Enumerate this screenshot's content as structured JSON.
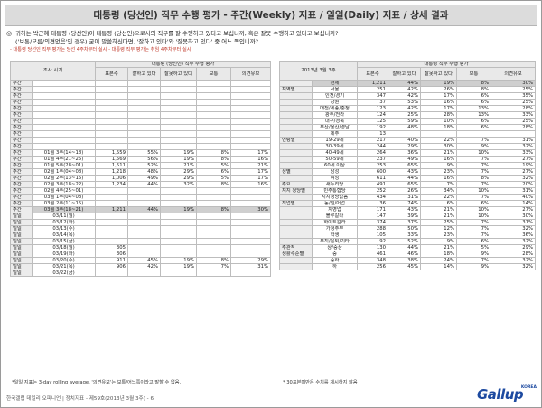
{
  "title": "대통령 (당선인) 직무 수행 평가 - 주간(Weekly) 지표 / 일일(Daily) 지표 / 상세 결과",
  "question": {
    "bullet": "◎",
    "line1": "귀하는 박근혜 대통령 (당선인)이 대통령 (당선인)으로서의 직무를 잘 수행하고 있다고 보십니까, 혹은 잘못 수행하고 있다고 보십니까?",
    "line2": "('보통/모름/의견없음'인 경우) 굳이 말씀하신다면, '잘하고 있다'와 '잘못하고 있다' 중 어느 쪽입니까?"
  },
  "notes": {
    "line1": "- 대통령 당선인 직무 평가는 당선 4주차부터 실시",
    "line2": "- 대통령 직무 평가는 취임 4주차부터 실시"
  },
  "left_table": {
    "header_period": "조사 시기",
    "header_group": "대통령 (당선인) 직무 수행 평가",
    "header_n": "표본수",
    "header_good": "잘하고 있다",
    "header_bad": "잘못하고 있다",
    "header_neutral": "보통",
    "header_nr": "의견유보",
    "weekly_rows": [
      {
        "kind": "주간",
        "period": "",
        "n": "",
        "good": "",
        "bad": "",
        "neutral": "",
        "nr": ""
      },
      {
        "kind": "주간",
        "period": "",
        "n": "",
        "good": "",
        "bad": "",
        "neutral": "",
        "nr": ""
      },
      {
        "kind": "주간",
        "period": "",
        "n": "",
        "good": "",
        "bad": "",
        "neutral": "",
        "nr": ""
      },
      {
        "kind": "주간",
        "period": "",
        "n": "",
        "good": "",
        "bad": "",
        "neutral": "",
        "nr": ""
      },
      {
        "kind": "주간",
        "period": "",
        "n": "",
        "good": "",
        "bad": "",
        "neutral": "",
        "nr": ""
      },
      {
        "kind": "주간",
        "period": "",
        "n": "",
        "good": "",
        "bad": "",
        "neutral": "",
        "nr": ""
      },
      {
        "kind": "주간",
        "period": "",
        "n": "",
        "good": "",
        "bad": "",
        "neutral": "",
        "nr": ""
      },
      {
        "kind": "주간",
        "period": "",
        "n": "",
        "good": "",
        "bad": "",
        "neutral": "",
        "nr": ""
      },
      {
        "kind": "주간",
        "period": "",
        "n": "",
        "good": "",
        "bad": "",
        "neutral": "",
        "nr": ""
      },
      {
        "kind": "주간",
        "period": "",
        "n": "",
        "good": "",
        "bad": "",
        "neutral": "",
        "nr": ""
      },
      {
        "kind": "주간",
        "period": "",
        "n": "",
        "good": "",
        "bad": "",
        "neutral": "",
        "nr": ""
      },
      {
        "kind": "주간",
        "period": "01월 3주(14~18)",
        "n": "1,559",
        "good": "55%",
        "bad": "19%",
        "neutral": "8%",
        "nr": "17%"
      },
      {
        "kind": "주간",
        "period": "01월 4주(21~25)",
        "n": "1,569",
        "good": "56%",
        "bad": "19%",
        "neutral": "8%",
        "nr": "16%"
      },
      {
        "kind": "주간",
        "period": "01월 5주(28~01)",
        "n": "1,511",
        "good": "52%",
        "bad": "21%",
        "neutral": "5%",
        "nr": "21%"
      },
      {
        "kind": "주간",
        "period": "02월 1주(04~08)",
        "n": "1,218",
        "good": "48%",
        "bad": "29%",
        "neutral": "6%",
        "nr": "17%"
      },
      {
        "kind": "주간",
        "period": "02월 2주(13~15)",
        "n": "1,006",
        "good": "49%",
        "bad": "29%",
        "neutral": "5%",
        "nr": "17%"
      },
      {
        "kind": "주간",
        "period": "02월 3주(18~22)",
        "n": "1,234",
        "good": "44%",
        "bad": "32%",
        "neutral": "8%",
        "nr": "16%"
      },
      {
        "kind": "주간",
        "period": "02월 4주(25~01)",
        "n": "",
        "good": "",
        "bad": "",
        "neutral": "",
        "nr": ""
      },
      {
        "kind": "주간",
        "period": "03월 1주(04~08)",
        "n": "",
        "good": "",
        "bad": "",
        "neutral": "",
        "nr": ""
      },
      {
        "kind": "주간",
        "period": "03월 2주(11~15)",
        "n": "",
        "good": "",
        "bad": "",
        "neutral": "",
        "nr": ""
      },
      {
        "kind": "주간",
        "period": "03월 3주(18~21)",
        "n": "1,211",
        "good": "44%",
        "bad": "19%",
        "neutral": "8%",
        "nr": "30%"
      }
    ],
    "daily_rows": [
      {
        "kind": "일일",
        "period": "03/11(월)",
        "n": "",
        "good": "",
        "bad": "",
        "neutral": "",
        "nr": ""
      },
      {
        "kind": "일일",
        "period": "03/12(화)",
        "n": "",
        "good": "",
        "bad": "",
        "neutral": "",
        "nr": ""
      },
      {
        "kind": "일일",
        "period": "03/13(수)",
        "n": "",
        "good": "",
        "bad": "",
        "neutral": "",
        "nr": ""
      },
      {
        "kind": "일일",
        "period": "03/14(목)",
        "n": "",
        "good": "",
        "bad": "",
        "neutral": "",
        "nr": ""
      },
      {
        "kind": "일일",
        "period": "03/15(금)",
        "n": "",
        "good": "",
        "bad": "",
        "neutral": "",
        "nr": ""
      },
      {
        "kind": "일일",
        "period": "03/18(월)",
        "n": "305",
        "good": "",
        "bad": "",
        "neutral": "",
        "nr": ""
      },
      {
        "kind": "일일",
        "period": "03/19(화)",
        "n": "306",
        "good": "",
        "bad": "",
        "neutral": "",
        "nr": ""
      },
      {
        "kind": "일일",
        "period": "03/20(수)",
        "n": "911",
        "good": "45%",
        "bad": "19%",
        "neutral": "8%",
        "nr": "29%"
      },
      {
        "kind": "일일",
        "period": "03/21(목)",
        "n": "906",
        "good": "42%",
        "bob": "",
        "bad": "19%",
        "neutral": "7%",
        "nr": "31%"
      },
      {
        "kind": "일일",
        "period": "03/22(금)",
        "n": "",
        "good": "",
        "bad": "",
        "neutral": "",
        "nr": ""
      }
    ],
    "footnote": "*일일 지표는 3-day rolling average, '의견유보'는 보통/어느쪽이라고 말할 수 없음."
  },
  "right_table": {
    "period_label": "2013년 3월 3주",
    "header_group": "대통령 직무 수행 평가",
    "header_n": "표본수",
    "header_good": "잘하고 있다",
    "header_bad": "잘못하고 있다",
    "header_neutral": "보통",
    "header_nr": "의견유보",
    "total": {
      "cat": "",
      "sub": "전체",
      "n": "1,211",
      "good": "44%",
      "bad": "19%",
      "neutral": "8%",
      "nr": "30%"
    },
    "rows": [
      {
        "cat": "지역별",
        "sub": "서울",
        "n": "251",
        "good": "42%",
        "bad": "26%",
        "neutral": "8%",
        "nr": "25%"
      },
      {
        "cat": "",
        "sub": "인천/경기",
        "n": "347",
        "good": "42%",
        "bad": "17%",
        "neutral": "6%",
        "nr": "35%"
      },
      {
        "cat": "",
        "sub": "강원",
        "n": "37",
        "good": "53%",
        "bad": "16%",
        "neutral": "6%",
        "nr": "25%"
      },
      {
        "cat": "",
        "sub": "대전/세종/충청",
        "n": "123",
        "good": "42%",
        "bad": "17%",
        "neutral": "13%",
        "nr": "28%"
      },
      {
        "cat": "",
        "sub": "광주/전라",
        "n": "124",
        "good": "25%",
        "bad": "28%",
        "neutral": "13%",
        "nr": "33%"
      },
      {
        "cat": "",
        "sub": "대구/경북",
        "n": "125",
        "good": "59%",
        "bad": "10%",
        "neutral": "6%",
        "nr": "25%"
      },
      {
        "cat": "",
        "sub": "부산/울산/경남",
        "n": "192",
        "good": "48%",
        "bad": "18%",
        "neutral": "6%",
        "nr": "28%"
      },
      {
        "cat": "",
        "sub": "제주",
        "n": "13",
        "good": "",
        "bad": "",
        "neutral": "",
        "nr": ""
      },
      {
        "cat": "연령별",
        "sub": "19-29세",
        "n": "217",
        "good": "40%",
        "bad": "22%",
        "neutral": "7%",
        "nr": "31%"
      },
      {
        "cat": "",
        "sub": "30-39세",
        "n": "244",
        "good": "29%",
        "bad": "30%",
        "neutral": "9%",
        "nr": "32%"
      },
      {
        "cat": "",
        "sub": "40-49세",
        "n": "264",
        "good": "36%",
        "bad": "21%",
        "neutral": "10%",
        "nr": "33%"
      },
      {
        "cat": "",
        "sub": "50-59세",
        "n": "237",
        "good": "49%",
        "bad": "16%",
        "neutral": "7%",
        "nr": "27%"
      },
      {
        "cat": "",
        "sub": "60세 이상",
        "n": "253",
        "good": "65%",
        "bad": "9%",
        "neutral": "7%",
        "nr": "19%"
      },
      {
        "cat": "성별",
        "sub": "남성",
        "n": "600",
        "good": "43%",
        "bad": "23%",
        "neutral": "7%",
        "nr": "27%"
      },
      {
        "cat": "",
        "sub": "여성",
        "n": "611",
        "good": "44%",
        "bad": "16%",
        "neutral": "8%",
        "nr": "32%"
      },
      {
        "cat": "주요",
        "sub": "새누리당",
        "n": "491",
        "good": "65%",
        "bad": "7%",
        "neutral": "7%",
        "nr": "20%"
      },
      {
        "cat": "지지 정당별",
        "sub": "민주통합당",
        "n": "252",
        "good": "26%",
        "bad": "34%",
        "neutral": "10%",
        "nr": "31%"
      },
      {
        "cat": "",
        "sub": "지지정당없음",
        "n": "434",
        "good": "31%",
        "bad": "22%",
        "neutral": "7%",
        "nr": "40%"
      },
      {
        "cat": "직업별",
        "sub": "농/임/어업",
        "n": "36",
        "good": "74%",
        "bad": "6%",
        "neutral": "6%",
        "nr": "14%"
      },
      {
        "cat": "",
        "sub": "자영업",
        "n": "171",
        "good": "43%",
        "bad": "21%",
        "neutral": "10%",
        "nr": "27%"
      },
      {
        "cat": "",
        "sub": "블루칼라",
        "n": "147",
        "good": "39%",
        "bad": "21%",
        "neutral": "10%",
        "nr": "30%"
      },
      {
        "cat": "",
        "sub": "화이트칼라",
        "n": "374",
        "good": "37%",
        "bad": "25%",
        "neutral": "7%",
        "nr": "31%"
      },
      {
        "cat": "",
        "sub": "가정주부",
        "n": "288",
        "good": "50%",
        "bad": "12%",
        "neutral": "7%",
        "nr": "32%"
      },
      {
        "cat": "",
        "sub": "학생",
        "n": "105",
        "good": "33%",
        "bad": "23%",
        "neutral": "7%",
        "nr": "36%"
      },
      {
        "cat": "",
        "sub": "무직/은퇴/기타",
        "n": "92",
        "good": "52%",
        "bad": "9%",
        "neutral": "6%",
        "nr": "32%"
      },
      {
        "cat": "주관적",
        "sub": "상/중상",
        "n": "130",
        "good": "44%",
        "bad": "21%",
        "neutral": "5%",
        "nr": "29%"
      },
      {
        "cat": "생활수준별",
        "sub": "중",
        "n": "461",
        "good": "46%",
        "bad": "18%",
        "neutral": "9%",
        "nr": "28%"
      },
      {
        "cat": "",
        "sub": "중하",
        "n": "348",
        "good": "38%",
        "bad": "24%",
        "neutral": "7%",
        "nr": "32%"
      },
      {
        "cat": "",
        "sub": "하",
        "n": "256",
        "good": "45%",
        "bad": "14%",
        "neutral": "9%",
        "nr": "32%"
      }
    ],
    "footnote": "* 30표본미만은 수치를 게시하지 않음"
  },
  "source": "한국갤럽 데일리 오피니언 | 정치지표 - 제59호(2013년 3월 3주) - 6",
  "logo": {
    "text": "Gallup",
    "sub": "KOREA"
  }
}
